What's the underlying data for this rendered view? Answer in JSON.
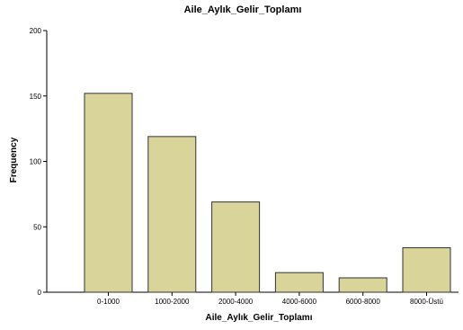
{
  "chart_data": {
    "type": "bar",
    "title": "Aile_Aylık_Gelir_Toplamı",
    "xlabel": "Aile_Aylık_Gelir_Toplamı",
    "ylabel": "Frequency",
    "categories": [
      "0-1000",
      "1000-2000",
      "2000-4000",
      "4000-6000",
      "6000-8000",
      "8000-Üstü"
    ],
    "values": [
      152,
      119,
      69,
      15,
      11,
      34
    ],
    "ylim": [
      0,
      200
    ],
    "yticks": [
      0,
      50,
      100,
      150,
      200
    ],
    "grid": false,
    "bar_color": "#d9d49a",
    "bar_edge_color": "#333333"
  }
}
